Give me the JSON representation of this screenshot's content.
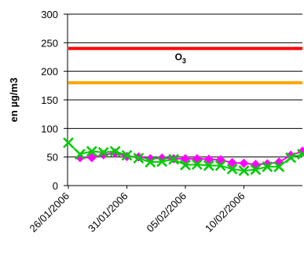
{
  "chart_data": {
    "type": "line",
    "ylabel": "en µg/m3",
    "xlabel": "",
    "title": "",
    "ylim": [
      0,
      300
    ],
    "yticks": [
      "0",
      "50",
      "100",
      "150",
      "200",
      "250",
      "300"
    ],
    "x_tick_labels": [
      "26/01/2006",
      "31/01/2006",
      "05/02/2006",
      "10/02/2006"
    ],
    "x_tick_day_index": [
      0,
      5,
      10,
      15
    ],
    "grid": "horizontal",
    "annotation": {
      "text": "O",
      "subscript": "3",
      "x_day_index": 9.1,
      "y": 240
    },
    "reference_lines": [
      {
        "value": 240,
        "color": "#ff0000"
      },
      {
        "value": 180,
        "color": "#ffa500"
      }
    ],
    "series": [
      {
        "marker": "diamond",
        "color": "#ff00ff",
        "x_day_index": [
          1,
          2,
          3,
          4,
          5,
          6,
          7,
          8,
          9,
          10,
          11,
          12,
          13,
          14,
          15,
          16,
          17,
          18,
          19,
          20
        ],
        "values": [
          49,
          49,
          54,
          57,
          51,
          50,
          47,
          48,
          47,
          47,
          47,
          46,
          45,
          40,
          39,
          37,
          38,
          41,
          53,
          60
        ]
      },
      {
        "marker": "x",
        "color": "#00cc00",
        "x_day_index": [
          0,
          1,
          2,
          3,
          4,
          5,
          6,
          7,
          8,
          9,
          10,
          11,
          12,
          13,
          14,
          15,
          16,
          17,
          18,
          19,
          20
        ],
        "values": [
          75,
          55,
          60,
          58,
          60,
          53,
          48,
          41,
          42,
          46,
          36,
          37,
          35,
          35,
          29,
          26,
          28,
          33,
          33,
          49,
          55
        ]
      }
    ],
    "colors": {
      "grid": "#000000",
      "axis": "#000000"
    }
  }
}
